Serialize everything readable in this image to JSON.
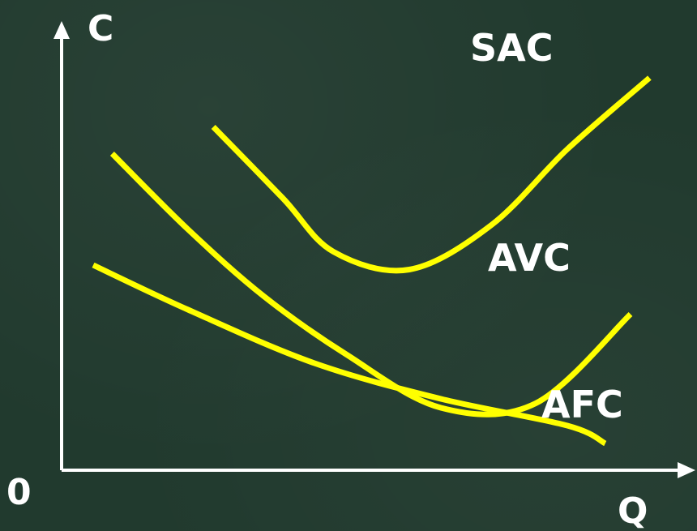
{
  "chart_data": {
    "type": "line",
    "title": "",
    "xlabel": "Q",
    "ylabel": "C",
    "origin_label": "0",
    "grid": false,
    "xlim": [
      0,
      10
    ],
    "ylim": [
      0,
      10
    ],
    "series": [
      {
        "name": "SAC",
        "color": "#ffff00",
        "points": [
          [
            2.4,
            7.7
          ],
          [
            3.5,
            6.1
          ],
          [
            4.3,
            4.9
          ],
          [
            5.5,
            4.5
          ],
          [
            6.8,
            5.5
          ],
          [
            8.0,
            7.2
          ],
          [
            9.3,
            8.8
          ]
        ]
      },
      {
        "name": "AVC",
        "color": "#ffff00",
        "points": [
          [
            0.8,
            7.1
          ],
          [
            2.0,
            5.4
          ],
          [
            3.2,
            3.9
          ],
          [
            4.5,
            2.6
          ],
          [
            6.0,
            1.4
          ],
          [
            7.5,
            1.5
          ],
          [
            9.0,
            3.5
          ]
        ]
      },
      {
        "name": "AFC",
        "color": "#ffff00",
        "points": [
          [
            0.5,
            4.6
          ],
          [
            2.0,
            3.6
          ],
          [
            4.0,
            2.4
          ],
          [
            6.0,
            1.6
          ],
          [
            8.0,
            1.0
          ],
          [
            8.6,
            0.6
          ]
        ]
      }
    ]
  },
  "colors": {
    "background": "#213a2e",
    "curve": "#ffff00",
    "axis": "#ffffff",
    "text": "#ffffff"
  }
}
